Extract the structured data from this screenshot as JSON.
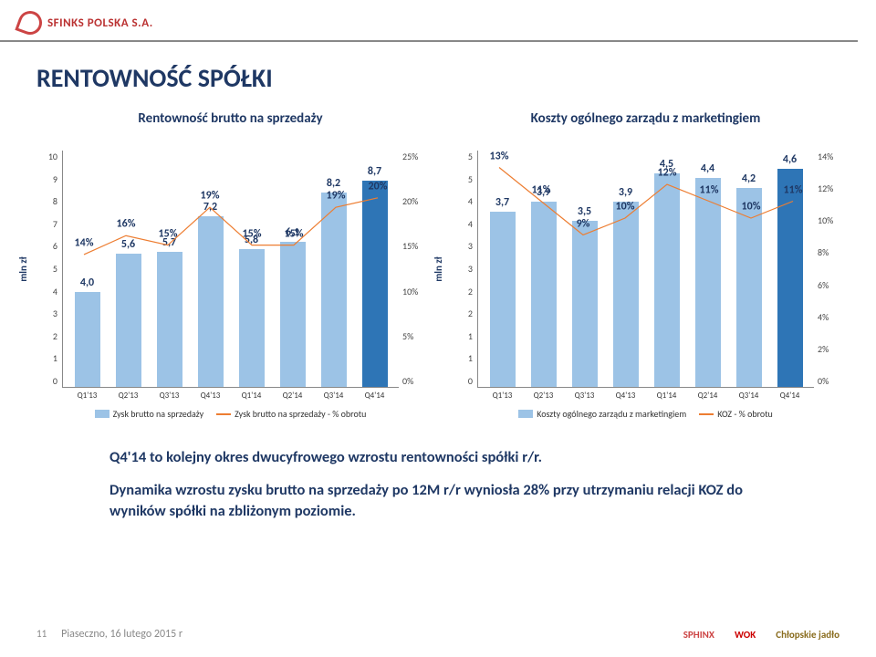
{
  "header": {
    "company": "SFINKS POLSKA S.A."
  },
  "title": "RENTOWNOŚĆ SPÓŁKI",
  "chart1": {
    "title": "Rentowność brutto na sprzedaży",
    "type": "bar+line",
    "ylabel": "mln zł",
    "categories": [
      "Q1'13",
      "Q2'13",
      "Q3'13",
      "Q4'13",
      "Q1'14",
      "Q2'14",
      "Q3'14",
      "Q4'14"
    ],
    "bar_values": [
      4.0,
      5.6,
      5.7,
      7.2,
      5.8,
      6.1,
      8.2,
      8.7
    ],
    "bar_labels": [
      "4,0",
      "5,6",
      "5,7",
      "7,2",
      "5,8",
      "6,1",
      "8,2",
      "8,7"
    ],
    "line_pct": [
      14,
      16,
      15,
      19,
      15,
      15,
      19,
      20
    ],
    "line_labels": [
      "14%",
      "16%",
      "15%",
      "19%",
      "15%",
      "15%",
      "19%",
      "20%"
    ],
    "bar_color": "#9cc3e6",
    "last_bar_color": "#2e75b6",
    "line_color": "#ed7d31",
    "yleft_max": 10,
    "yleft_ticks": [
      "10",
      "9",
      "8",
      "7",
      "6",
      "5",
      "4",
      "3",
      "2",
      "1",
      "0"
    ],
    "yright_max": 25,
    "yright_ticks": [
      "25%",
      "20%",
      "15%",
      "10%",
      "5%",
      "0%"
    ],
    "legend_bar": "Zysk brutto na sprzedaży",
    "legend_line": "Zysk brutto na sprzedaży - % obrotu"
  },
  "chart2": {
    "title": "Koszty ogólnego zarządu z marketingiem",
    "type": "bar+line",
    "ylabel": "mln zł",
    "categories": [
      "Q1'13",
      "Q2'13",
      "Q3'13",
      "Q4'13",
      "Q1'14",
      "Q2'14",
      "Q3'14",
      "Q4'14"
    ],
    "bar_values": [
      3.7,
      3.9,
      3.5,
      3.9,
      4.5,
      4.4,
      4.2,
      4.6
    ],
    "bar_labels": [
      "3,7",
      "3,9",
      "3,5",
      "3,9",
      "4,5",
      "4,4",
      "4,2",
      "4,6"
    ],
    "line_pct": [
      13,
      11,
      9,
      10,
      12,
      11,
      10,
      11
    ],
    "line_labels": [
      "13%",
      "11%",
      "9%",
      "10%",
      "12%",
      "11%",
      "10%",
      "11%"
    ],
    "bar_color": "#9cc3e6",
    "last_bar_color": "#2e75b6",
    "line_color": "#ed7d31",
    "yleft_max": 5,
    "yleft_ticks": [
      "5",
      "5",
      "4",
      "4",
      "3",
      "3",
      "2",
      "2",
      "1",
      "1",
      "0"
    ],
    "yright_max": 14,
    "yright_ticks": [
      "14%",
      "12%",
      "10%",
      "8%",
      "6%",
      "4%",
      "2%",
      "0%"
    ],
    "legend_bar": "Koszty ogólnego zarządu z marketingiem",
    "legend_line": "KOZ - % obrotu"
  },
  "bullets": [
    "Q4'14 to kolejny okres dwucyfrowego wzrostu rentowności spółki r/r.",
    "Dynamika wzrostu zysku brutto na sprzedaży po 12M r/r wyniosła 28% przy utrzymaniu relacji KOZ do wyników spółki na zbliżonym poziomie."
  ],
  "footer": {
    "page": "11",
    "location": "Piaseczno, 16 lutego 2015 r",
    "logos": [
      "SPHINX",
      "WOK",
      "Chłopskie jadło"
    ]
  }
}
